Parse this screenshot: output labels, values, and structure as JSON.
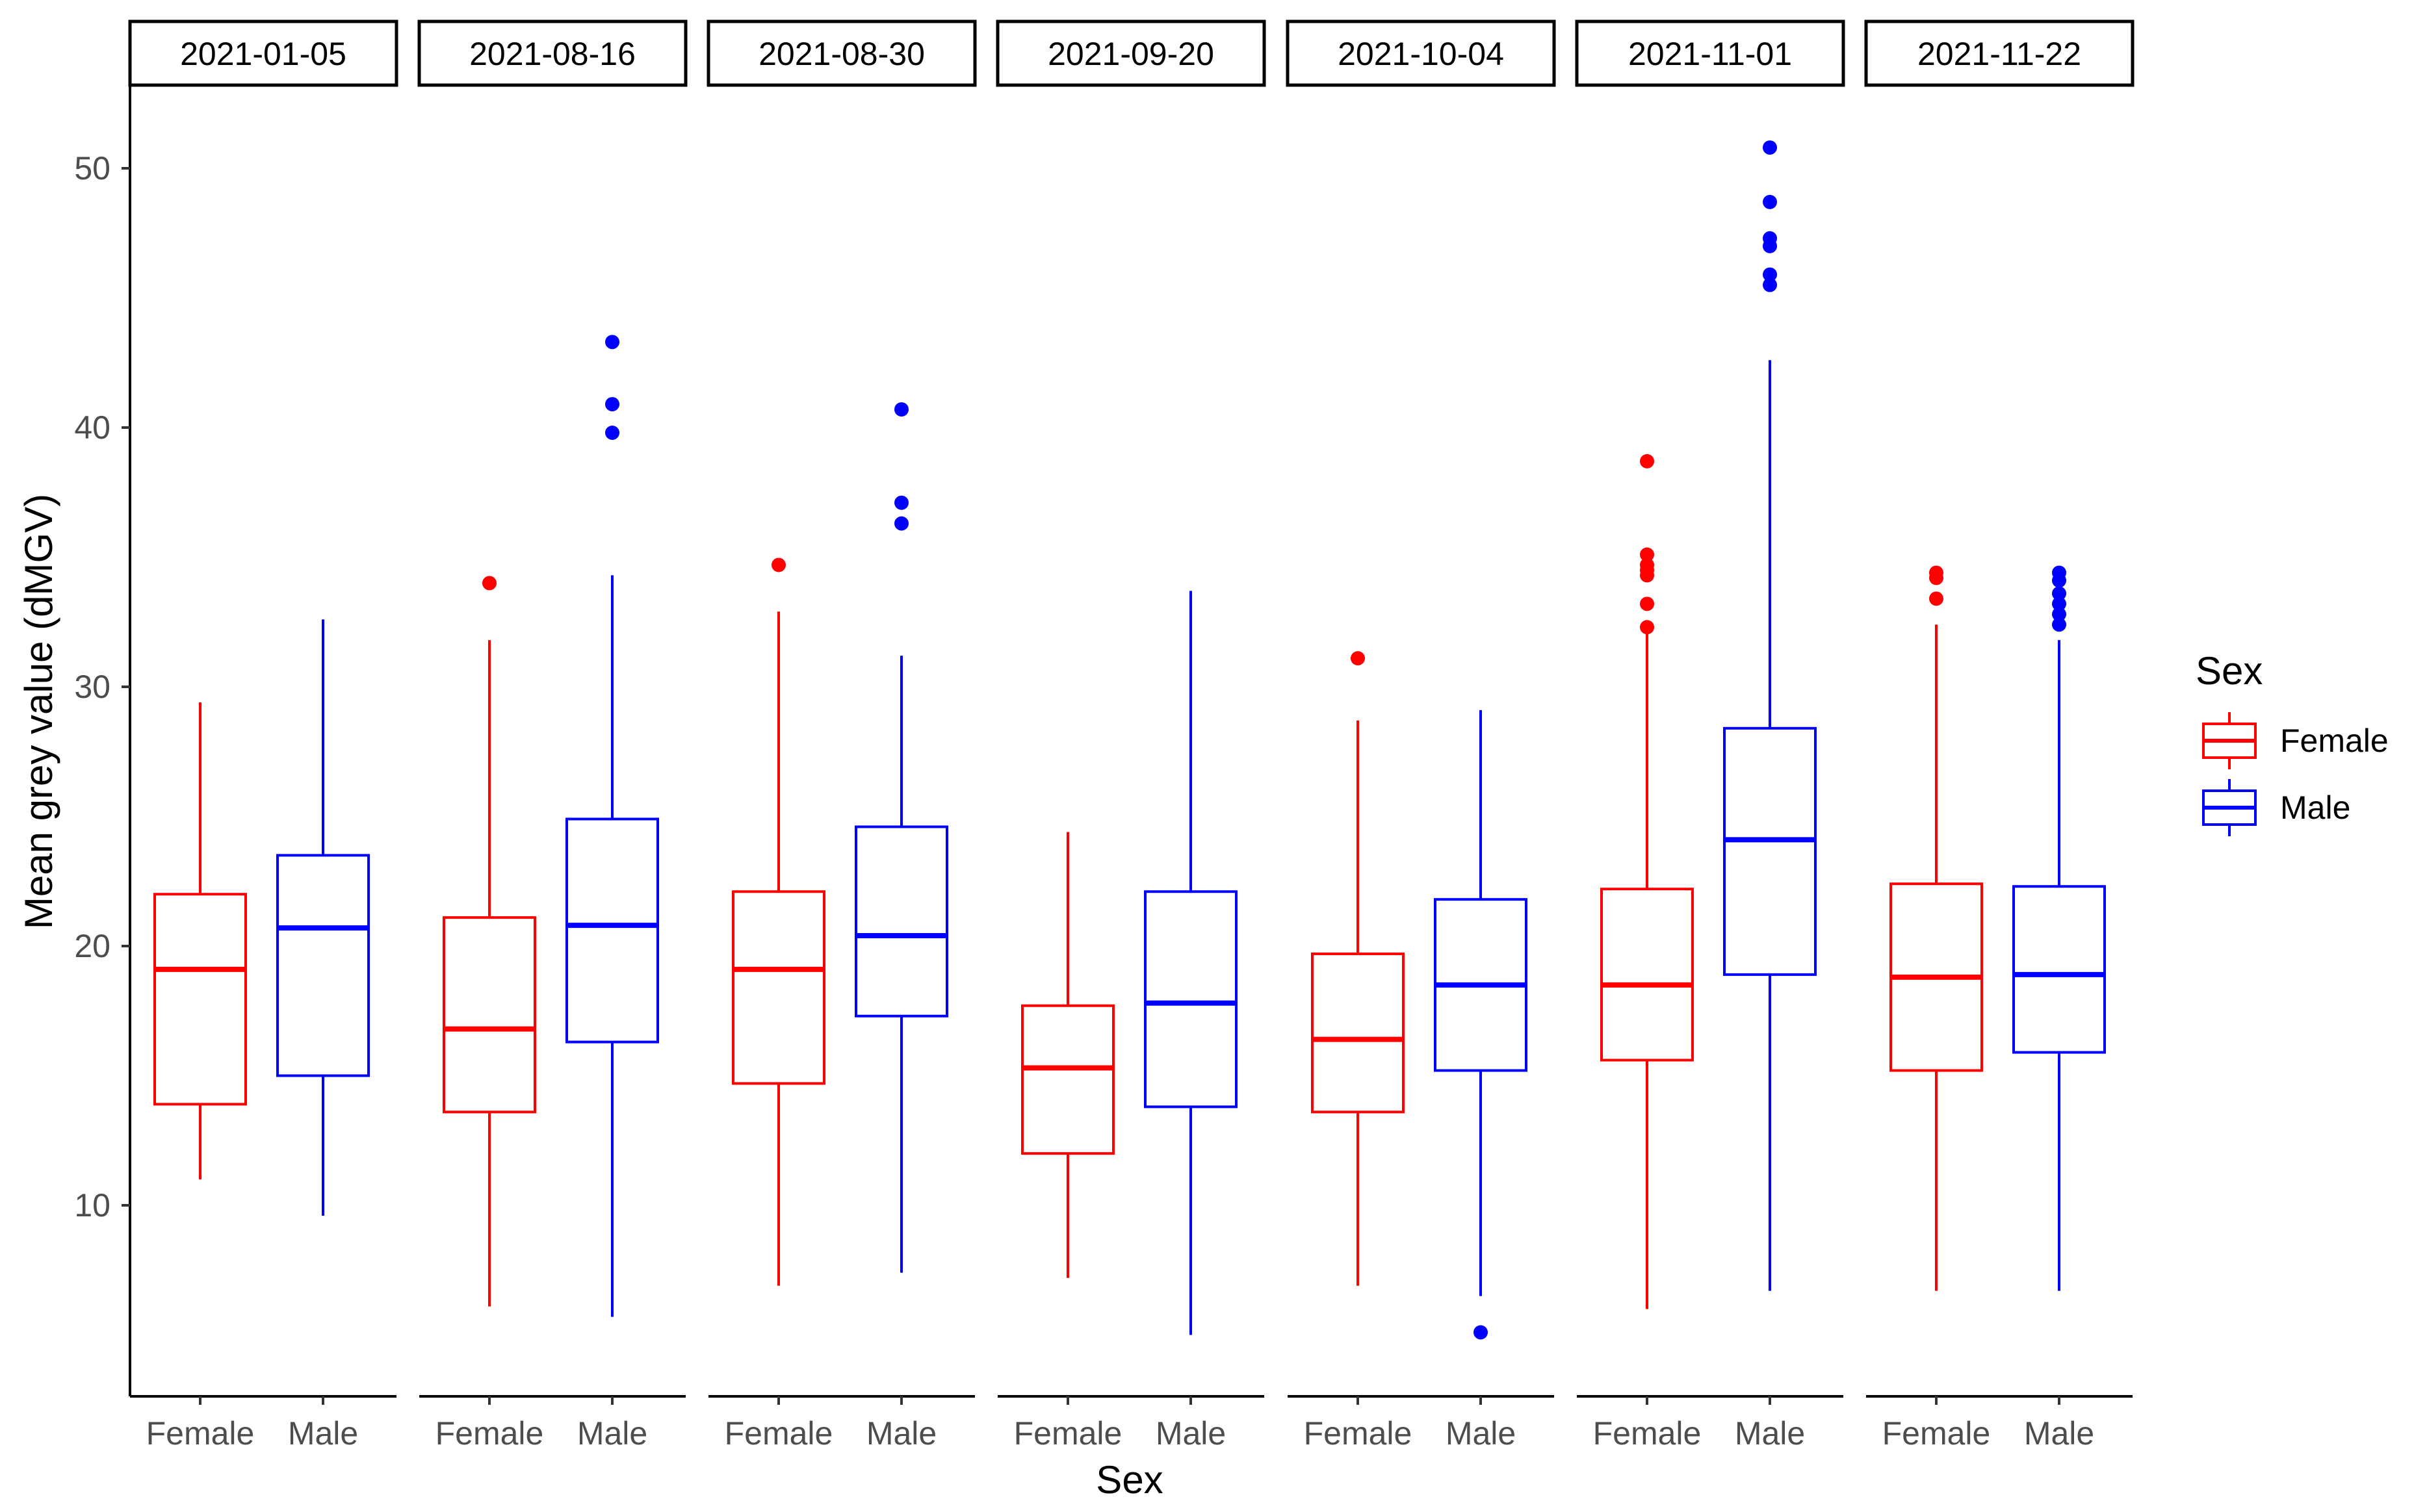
{
  "chart_data": {
    "type": "boxplot",
    "facet_by": "date",
    "xlabel": "Sex",
    "ylabel": "Mean grey value (dMGV)",
    "ylim": [
      3,
      53
    ],
    "yticks": [
      10,
      20,
      30,
      40,
      50
    ],
    "categories": [
      "Female",
      "Male"
    ],
    "colors": {
      "Female": "#ff0000",
      "Male": "#0000ff"
    },
    "legend": {
      "title": "Sex",
      "entries": [
        "Female",
        "Male"
      ],
      "position": "right"
    },
    "grid": false,
    "facets": [
      {
        "label": "2021-01-05",
        "boxes": [
          {
            "sex": "Female",
            "whisker_low": 11.0,
            "q1": 13.9,
            "median": 19.1,
            "q3": 22.0,
            "whisker_high": 29.4,
            "outliers": []
          },
          {
            "sex": "Male",
            "whisker_low": 9.6,
            "q1": 15.0,
            "median": 20.7,
            "q3": 23.5,
            "whisker_high": 32.6,
            "outliers": []
          }
        ]
      },
      {
        "label": "2021-08-16",
        "boxes": [
          {
            "sex": "Female",
            "whisker_low": 6.1,
            "q1": 13.6,
            "median": 16.8,
            "q3": 21.1,
            "whisker_high": 31.8,
            "outliers": [
              34.0
            ]
          },
          {
            "sex": "Male",
            "whisker_low": 5.7,
            "q1": 16.3,
            "median": 20.8,
            "q3": 24.9,
            "whisker_high": 34.3,
            "outliers": [
              39.8,
              40.9,
              43.3
            ]
          }
        ]
      },
      {
        "label": "2021-08-30",
        "boxes": [
          {
            "sex": "Female",
            "whisker_low": 6.9,
            "q1": 14.7,
            "median": 19.1,
            "q3": 22.1,
            "whisker_high": 32.9,
            "outliers": [
              34.7
            ]
          },
          {
            "sex": "Male",
            "whisker_low": 7.4,
            "q1": 17.3,
            "median": 20.4,
            "q3": 24.6,
            "whisker_high": 31.2,
            "outliers": [
              36.3,
              37.1,
              40.7
            ]
          }
        ]
      },
      {
        "label": "2021-09-20",
        "boxes": [
          {
            "sex": "Female",
            "whisker_low": 7.2,
            "q1": 12.0,
            "median": 15.3,
            "q3": 17.7,
            "whisker_high": 24.4,
            "outliers": []
          },
          {
            "sex": "Male",
            "whisker_low": 5.0,
            "q1": 13.8,
            "median": 17.8,
            "q3": 22.1,
            "whisker_high": 33.7,
            "outliers": []
          }
        ]
      },
      {
        "label": "2021-10-04",
        "boxes": [
          {
            "sex": "Female",
            "whisker_low": 6.9,
            "q1": 13.6,
            "median": 16.4,
            "q3": 19.7,
            "whisker_high": 28.7,
            "outliers": [
              31.1
            ]
          },
          {
            "sex": "Male",
            "whisker_low": 6.5,
            "q1": 15.2,
            "median": 18.5,
            "q3": 21.8,
            "whisker_high": 29.1,
            "outliers": [
              5.1
            ]
          }
        ]
      },
      {
        "label": "2021-11-01",
        "boxes": [
          {
            "sex": "Female",
            "whisker_low": 6.0,
            "q1": 15.6,
            "median": 18.5,
            "q3": 22.2,
            "whisker_high": 32.1,
            "outliers": [
              32.3,
              33.2,
              34.3,
              34.5,
              34.7,
              35.1,
              38.7
            ]
          },
          {
            "sex": "Male",
            "whisker_low": 6.7,
            "q1": 18.9,
            "median": 24.1,
            "q3": 28.4,
            "whisker_high": 42.6,
            "outliers": [
              45.5,
              45.9,
              47.0,
              47.3,
              48.7,
              50.8
            ]
          }
        ]
      },
      {
        "label": "2021-11-22",
        "boxes": [
          {
            "sex": "Female",
            "whisker_low": 6.7,
            "q1": 15.2,
            "median": 18.8,
            "q3": 22.4,
            "whisker_high": 32.4,
            "outliers": [
              33.4,
              34.2,
              34.4
            ]
          },
          {
            "sex": "Male",
            "whisker_low": 6.7,
            "q1": 15.9,
            "median": 18.9,
            "q3": 22.3,
            "whisker_high": 31.8,
            "outliers": [
              32.4,
              32.8,
              33.2,
              33.6,
              34.1,
              34.4
            ]
          }
        ]
      }
    ]
  }
}
